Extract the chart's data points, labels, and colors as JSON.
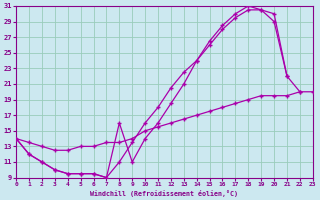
{
  "xlim": [
    0,
    23
  ],
  "ylim": [
    9,
    31
  ],
  "xticks": [
    0,
    1,
    2,
    3,
    4,
    5,
    6,
    7,
    8,
    9,
    10,
    11,
    12,
    13,
    14,
    15,
    16,
    17,
    18,
    19,
    20,
    21,
    22,
    23
  ],
  "yticks": [
    9,
    11,
    13,
    15,
    17,
    19,
    21,
    23,
    25,
    27,
    29,
    31
  ],
  "bg_color": "#cce8f0",
  "line_color": "#aa00aa",
  "grid_color": "#99ccbb",
  "xlabel": "Windchill (Refroidissement éolien,°C)",
  "curve1_x": [
    0,
    1,
    2,
    3,
    4,
    5,
    6,
    7,
    8,
    9,
    10,
    11,
    12,
    13,
    14,
    15,
    16,
    17,
    18,
    19,
    20,
    21
  ],
  "curve1_y": [
    14,
    12,
    11,
    10,
    9.5,
    9.5,
    9.5,
    9,
    16,
    11,
    14,
    16,
    18.5,
    21,
    24,
    26.5,
    28.5,
    30,
    31,
    30.5,
    30,
    22
  ],
  "curve2_x": [
    0,
    1,
    2,
    3,
    4,
    5,
    6,
    7,
    8,
    9,
    10,
    11,
    12,
    13,
    14,
    15,
    16,
    17,
    18,
    19,
    20,
    21,
    22
  ],
  "curve2_y": [
    14,
    12,
    11,
    10,
    9.5,
    9.5,
    9.5,
    9,
    11,
    13.5,
    16,
    18,
    20.5,
    22.5,
    24,
    26,
    28,
    29.5,
    30.5,
    30.5,
    29,
    22,
    20
  ],
  "curve3_x": [
    0,
    1,
    2,
    3,
    4,
    5,
    6,
    7,
    8,
    9,
    10,
    11,
    12,
    13,
    14,
    15,
    16,
    17,
    18,
    19,
    20,
    21,
    22,
    23
  ],
  "curve3_y": [
    14,
    13.5,
    13,
    12.5,
    12.5,
    13,
    13,
    13.5,
    13.5,
    14,
    15,
    15.5,
    16,
    16.5,
    17,
    17.5,
    18,
    18.5,
    19,
    19.5,
    19.5,
    19.5,
    20,
    20
  ]
}
